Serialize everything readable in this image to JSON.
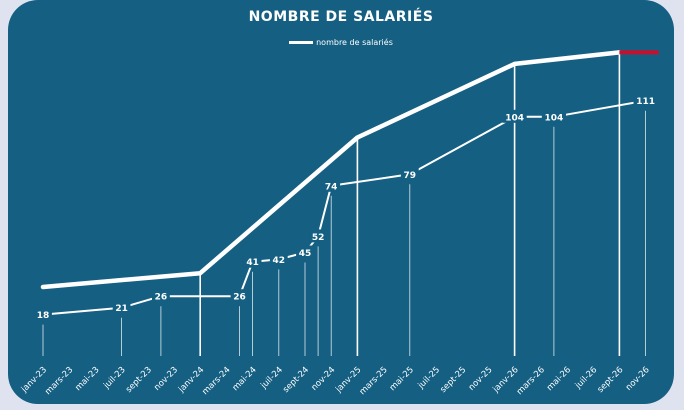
{
  "chart_data": {
    "type": "line",
    "title": "NOMBRE DE SALARIÉS",
    "legend": [
      "nombre de salariés"
    ],
    "legend_position": "top-center",
    "colors": {
      "background": "#155f82",
      "line": "#ffffff",
      "highlight": "#c8102e"
    },
    "categories": [
      "janv-23",
      "mars-23",
      "mai-23",
      "juil-23",
      "sept-23",
      "nov-23",
      "janv-24",
      "mars-24",
      "mai-24",
      "juil-24",
      "sept-24",
      "nov-24",
      "janv-25",
      "mars-25",
      "mai-25",
      "juil-25",
      "sept-25",
      "nov-25",
      "janv-26",
      "mars-26",
      "mai-26",
      "juil-26",
      "sept-26",
      "nov-26"
    ],
    "data_points": [
      {
        "date": "2023-01",
        "value": 18
      },
      {
        "date": "2023-07",
        "value": 21
      },
      {
        "date": "2023-10",
        "value": 26
      },
      {
        "date": "2024-04",
        "value": 26
      },
      {
        "date": "2024-05",
        "value": 41
      },
      {
        "date": "2024-07",
        "value": 42
      },
      {
        "date": "2024-09",
        "value": 45
      },
      {
        "date": "2024-10",
        "value": 52
      },
      {
        "date": "2024-11",
        "value": 74
      },
      {
        "date": "2025-05",
        "value": 79
      },
      {
        "date": "2026-01",
        "value": 104
      },
      {
        "date": "2026-04",
        "value": 104
      },
      {
        "date": "2026-11",
        "value": 111
      }
    ],
    "trend_line": [
      {
        "date": "2023-01",
        "value": 30
      },
      {
        "date": "2024-01",
        "value": 36
      },
      {
        "date": "2025-01",
        "value": 95
      },
      {
        "date": "2026-01",
        "value": 127
      },
      {
        "date": "2026-09",
        "value": 132
      }
    ],
    "highlight_segment": {
      "start": "2026-09",
      "end": "2026-12",
      "value": 132
    },
    "ylim": [
      0,
      140
    ],
    "grid": false
  }
}
